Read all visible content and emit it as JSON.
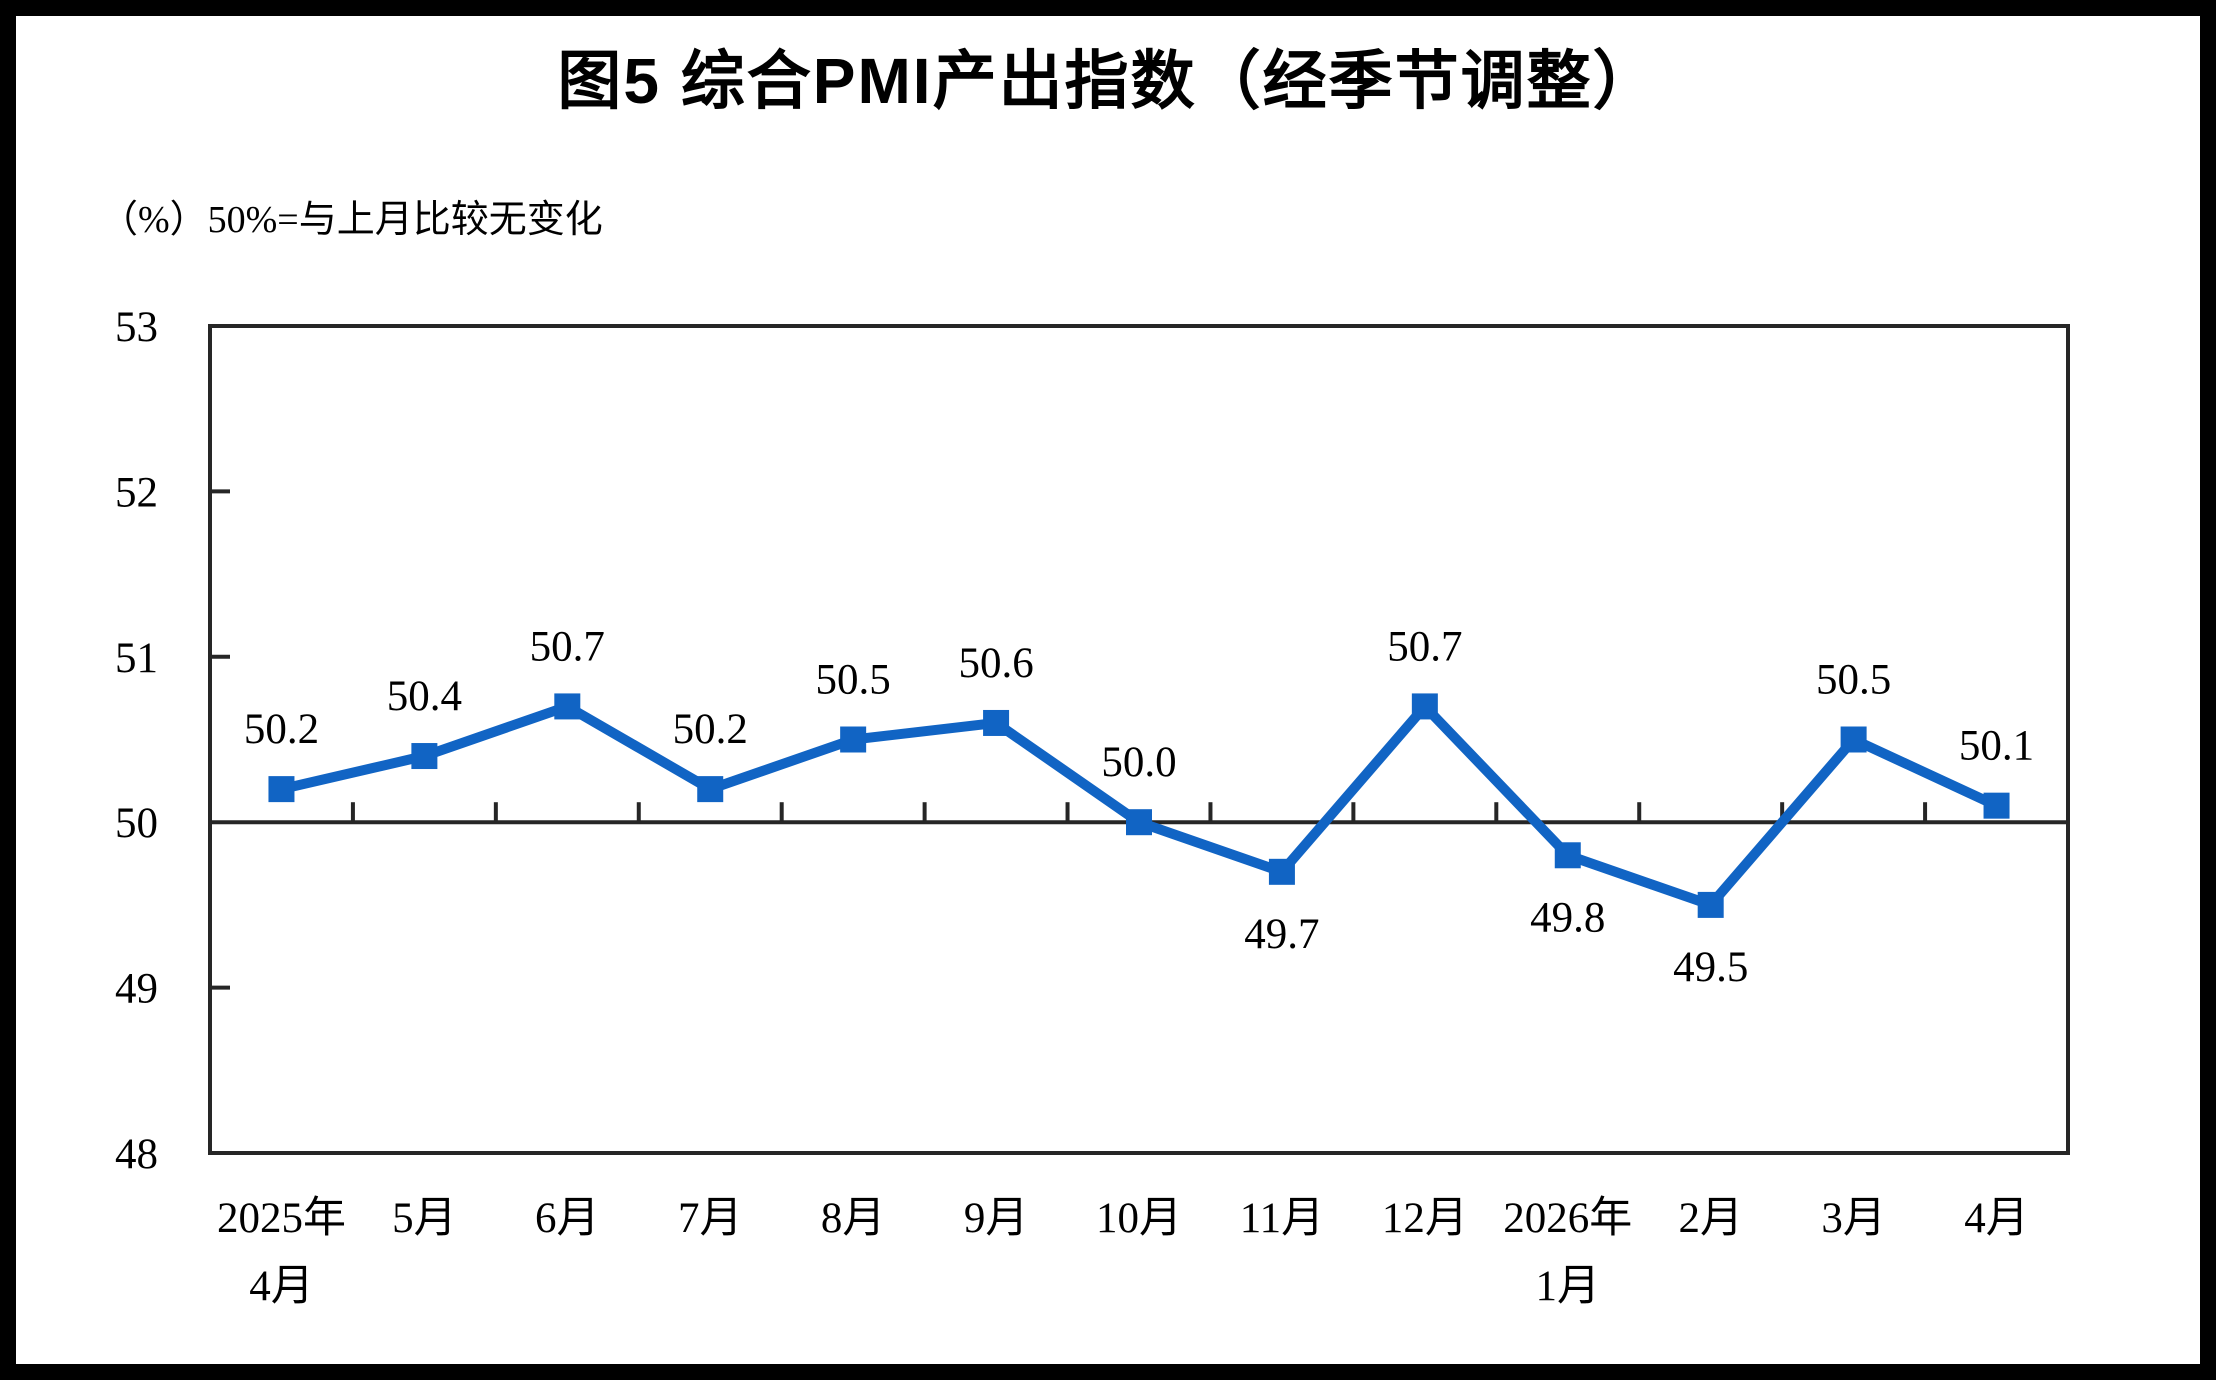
{
  "page": {
    "title": "图5 综合PMI产出指数（经季节调整）",
    "unit_note": "（%）50%=与上月比较无变化"
  },
  "chart_data": {
    "type": "line",
    "title": "图5 综合PMI产出指数（经季节调整）",
    "unit_label": "（%）50%=与上月比较无变化",
    "categories": [
      "2025年\n4月",
      "5月",
      "6月",
      "7月",
      "8月",
      "9月",
      "10月",
      "11月",
      "12月",
      "2026年\n1月",
      "2月",
      "3月",
      "4月"
    ],
    "series": [
      {
        "name": "综合PMI产出指数",
        "values": [
          50.2,
          50.4,
          50.7,
          50.2,
          50.5,
          50.6,
          50.0,
          49.7,
          50.7,
          49.8,
          49.5,
          50.5,
          50.1
        ]
      }
    ],
    "data_label_positions": [
      "above",
      "above",
      "above",
      "above",
      "above",
      "above",
      "above",
      "below",
      "above",
      "below",
      "below",
      "above",
      "above"
    ],
    "ylim": [
      48,
      53
    ],
    "yticks": [
      48,
      49,
      50,
      51,
      52,
      53
    ],
    "reference_line_value": 50,
    "xlabel": "",
    "ylabel": "（%）",
    "legend_position": "none",
    "grid": "off",
    "line_color": "#1164C4",
    "axis_color": "#262626",
    "marker": "square"
  }
}
